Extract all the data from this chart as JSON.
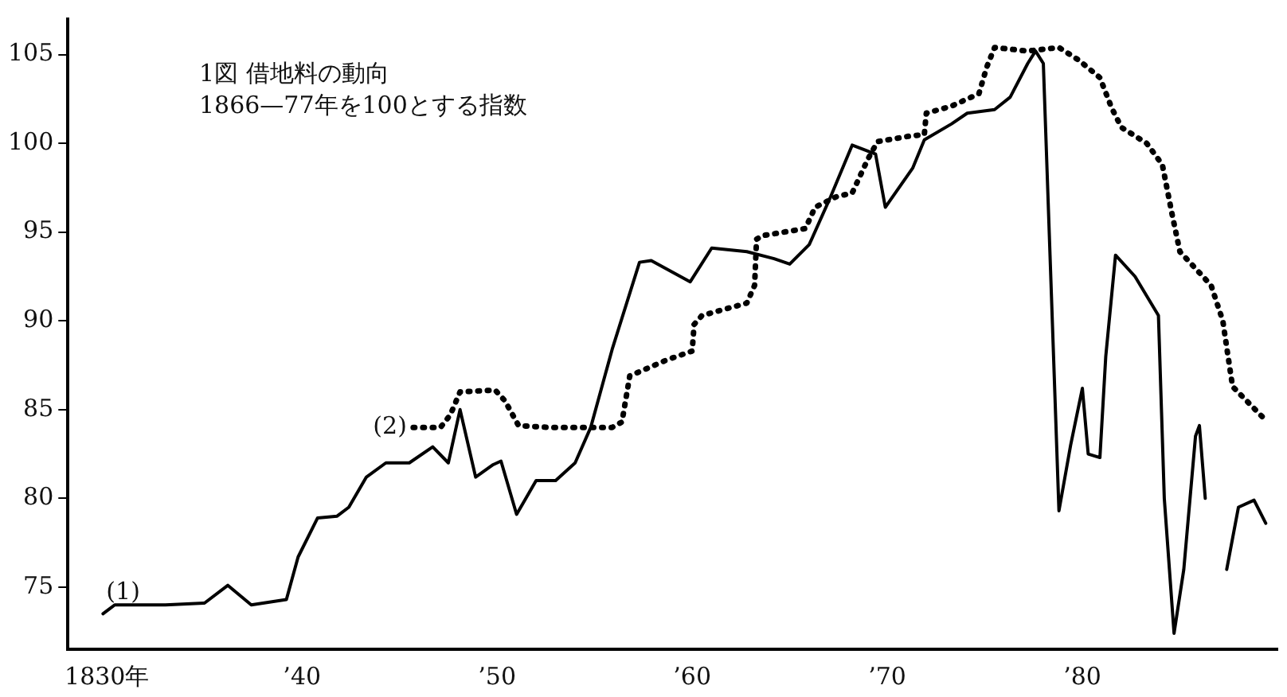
{
  "chart_data": {
    "type": "line",
    "title": "1図 借地料の動向",
    "subtitle": "1866—77年を100とする指数",
    "xlim": [
      1828,
      1890
    ],
    "ylim": [
      71.5,
      107
    ],
    "xticks": [
      {
        "value": 1830,
        "label": "1830年"
      },
      {
        "value": 1840,
        "label": "’40"
      },
      {
        "value": 1850,
        "label": "’50"
      },
      {
        "value": 1860,
        "label": "’60"
      },
      {
        "value": 1870,
        "label": "’70"
      },
      {
        "value": 1880,
        "label": "’80"
      }
    ],
    "yticks": [
      75,
      80,
      85,
      90,
      95,
      100,
      105
    ],
    "grid": false,
    "legend": false,
    "marker": "none",
    "series": [
      {
        "name": "(1)",
        "color": "#000000",
        "line_style": "solid",
        "x": [
          1829.8,
          1830.4,
          1833,
          1835,
          1836.2,
          1837.4,
          1839.2,
          1839.8,
          1840.8,
          1841.8,
          1842.4,
          1843.3,
          1844.3,
          1845.5,
          1846.7,
          1847.5,
          1848.1,
          1848.9,
          1849.8,
          1850.2,
          1851,
          1852,
          1853,
          1854,
          1854.8,
          1855.9,
          1857.3,
          1857.9,
          1859.9,
          1861,
          1862.8,
          1864.2,
          1865,
          1866,
          1867.1,
          1868.2,
          1869.4,
          1869.9,
          1871.3,
          1871.9,
          1873.3,
          1874.1,
          1875.5,
          1876.3,
          1877.2,
          1877.6,
          1878,
          1878.8,
          1879.4,
          1880,
          1880.3,
          1880.9,
          1881.2,
          1881.7,
          1882.7,
          1883.9,
          1884.2,
          1884.7,
          1885.2,
          1885.8,
          1886,
          1886.3,
          1886.5,
          1887.2,
          1887.4,
          1888,
          1888.8,
          1889.4
        ],
        "values": [
          73.5,
          74,
          74,
          74.1,
          75.1,
          74,
          74.3,
          76.7,
          78.9,
          79,
          79.5,
          81.2,
          82,
          82,
          82.9,
          82,
          85,
          81.2,
          81.9,
          82.1,
          79.1,
          81,
          81,
          82,
          84,
          88.4,
          93.3,
          93.4,
          92.2,
          94.1,
          93.9,
          93.5,
          93.2,
          94.3,
          97,
          99.9,
          99.4,
          96.4,
          98.6,
          100.2,
          101.1,
          101.7,
          101.9,
          102.6,
          104.5,
          105.2,
          104.5,
          79.3,
          83,
          86.2,
          82.5,
          82.3,
          88,
          93.7,
          92.5,
          90.3,
          80,
          72.4,
          76,
          83.5,
          84.1,
          80,
          null,
          null,
          76,
          79.5,
          79.9,
          78.6
        ]
      },
      {
        "name": "(2)",
        "color": "#000000",
        "line_style": "dotted",
        "x": [
          1845.7,
          1847.1,
          1847.6,
          1848.1,
          1849.9,
          1850.4,
          1851.1,
          1852.6,
          1855.9,
          1856.4,
          1856.8,
          1858.7,
          1860,
          1860.1,
          1860.5,
          1862.8,
          1863.2,
          1863.3,
          1863.6,
          1865.8,
          1866.3,
          1867.4,
          1868.2,
          1869,
          1869.5,
          1871.1,
          1871.9,
          1872,
          1873.3,
          1874.7,
          1875.1,
          1875.5,
          1877.2,
          1878.8,
          1879.8,
          1880.9,
          1881.5,
          1882,
          1883.3,
          1884.1,
          1884.6,
          1885,
          1886.6,
          1887.2,
          1887.4,
          1887.7,
          1889.4
        ],
        "values": [
          84,
          84,
          84.7,
          86,
          86.1,
          85.5,
          84.1,
          84,
          84,
          84.3,
          86.9,
          87.8,
          88.3,
          89.8,
          90.3,
          91,
          92,
          94.6,
          94.8,
          95.2,
          96.4,
          97,
          97.2,
          99.1,
          100.1,
          100.4,
          100.5,
          101.7,
          102.1,
          102.8,
          104.3,
          105.4,
          105.2,
          105.4,
          104.7,
          103.7,
          102,
          100.9,
          100,
          98.8,
          96,
          93.9,
          92,
          90,
          88.5,
          86.3,
          84.4
        ]
      }
    ]
  }
}
